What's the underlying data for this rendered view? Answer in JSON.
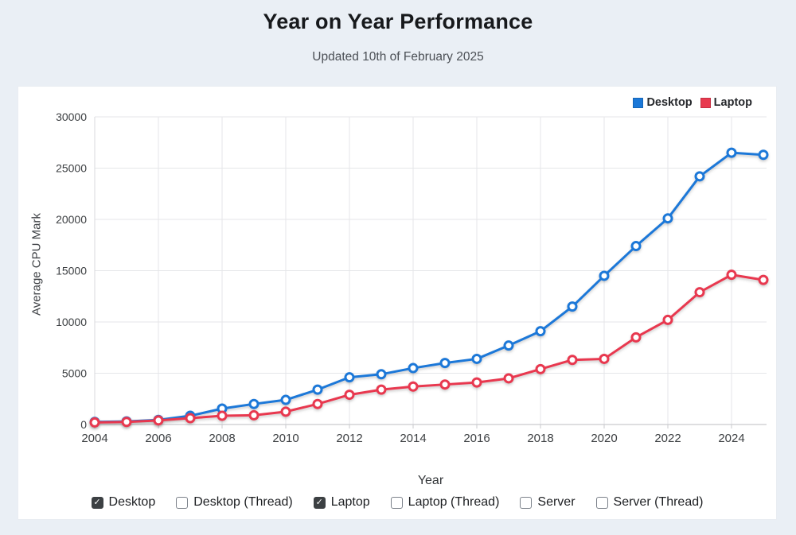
{
  "header": {
    "title": "Year on Year Performance",
    "subtitle": "Updated 10th of February 2025"
  },
  "chart_data": {
    "type": "line",
    "x": [
      2004,
      2005,
      2006,
      2007,
      2008,
      2009,
      2010,
      2011,
      2012,
      2013,
      2014,
      2015,
      2016,
      2017,
      2018,
      2019,
      2020,
      2021,
      2022,
      2023,
      2024,
      2025
    ],
    "series": [
      {
        "name": "Desktop",
        "color": "#1b78d8",
        "values": [
          250,
          300,
          450,
          850,
          1550,
          2000,
          2400,
          3400,
          4600,
          4900,
          5500,
          6000,
          6400,
          7700,
          9100,
          11500,
          14500,
          17400,
          20100,
          24200,
          26500,
          26300
        ]
      },
      {
        "name": "Laptop",
        "color": "#e8394f",
        "values": [
          200,
          250,
          400,
          620,
          850,
          900,
          1250,
          2000,
          2900,
          3400,
          3700,
          3900,
          4100,
          4500,
          5400,
          6300,
          6400,
          8500,
          10200,
          12900,
          14600,
          14100
        ]
      }
    ],
    "title": "Year on Year Performance",
    "xlabel": "Year",
    "ylabel": "Average CPU Mark",
    "ylim": [
      0,
      30000
    ],
    "yticks": [
      0,
      5000,
      10000,
      15000,
      20000,
      25000,
      30000
    ],
    "xticks": [
      2004,
      2006,
      2008,
      2010,
      2012,
      2014,
      2016,
      2018,
      2020,
      2022,
      2024
    ],
    "grid": true,
    "legend_position": "top-right",
    "marker": "open-circle"
  },
  "filters": {
    "items": [
      {
        "label": "Desktop",
        "checked": true
      },
      {
        "label": "Desktop (Thread)",
        "checked": false
      },
      {
        "label": "Laptop",
        "checked": true
      },
      {
        "label": "Laptop (Thread)",
        "checked": false
      },
      {
        "label": "Server",
        "checked": false
      },
      {
        "label": "Server (Thread)",
        "checked": false
      }
    ]
  },
  "colors": {
    "page_bg": "#eaeff5",
    "panel_bg": "#ffffff",
    "grid_line": "#e5e6e9",
    "axis_line": "#c9cace",
    "tick_text": "#3d4043",
    "desktop": "#1b78d8",
    "laptop": "#e8394f"
  }
}
